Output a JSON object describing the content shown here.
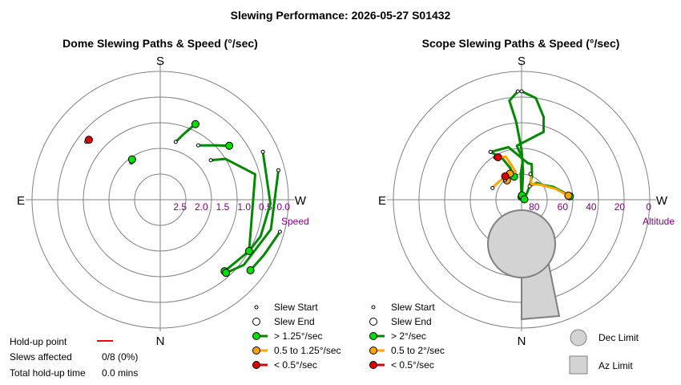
{
  "title": "Slewing Performance: 2026-05-27 S01432",
  "colors": {
    "fast": "#00dd00",
    "medium": "#ffa500",
    "slow": "#dd0000",
    "path_fast": "#008800",
    "path_medium": "#ffa500",
    "grid": "#808080",
    "tick": "#800080",
    "limit_fill": "#d3d3d3",
    "limit_stroke": "#808080",
    "holdup_line": "#ff0000"
  },
  "chart_data": [
    {
      "type": "polar-path",
      "title": "Dome Slewing Paths & Speed (°/sec)",
      "compass": {
        "top": "S",
        "bottom": "N",
        "left": "E",
        "right": "W"
      },
      "radial_axis": {
        "name": "Speed",
        "ticks": [
          "2.5",
          "2.0",
          "1.5",
          "1.0",
          "0.5",
          "0.0"
        ],
        "range": [
          3.0,
          0.0
        ]
      },
      "paths": [
        {
          "speed_class": "fast",
          "points": [
            [
              142,
              1.9
            ],
            [
              145,
              1.85
            ]
          ]
        },
        {
          "speed_class": "fast",
          "points": [
            [
              195,
              1.6
            ],
            [
              200,
              1.35
            ],
            [
              205,
              1.05
            ]
          ]
        },
        {
          "speed_class": "fast",
          "points": [
            [
              215,
              1.45
            ],
            [
              225,
              1.2
            ],
            [
              232,
              0.95
            ]
          ]
        },
        {
          "speed_class": "fast",
          "points": [
            [
              232,
              1.5
            ],
            [
              238,
              1.2
            ],
            [
              255,
              0.7
            ],
            [
              300,
              0.6
            ],
            [
              318,
              0.75
            ]
          ]
        },
        {
          "speed_class": "fast",
          "points": [
            [
              256,
              0.15
            ],
            [
              285,
              0.32
            ],
            [
              308,
              0.52
            ],
            [
              318,
              0.7
            ]
          ]
        },
        {
          "speed_class": "fast",
          "points": [
            [
              245,
              0.35
            ],
            [
              272,
              0.42
            ],
            [
              290,
              0.5
            ],
            [
              300,
              0.6
            ]
          ]
        },
        {
          "speed_class": "fast",
          "points": [
            [
              285,
              0.1
            ],
            [
              298,
              0.25
            ],
            [
              308,
              0.32
            ]
          ]
        },
        {
          "speed_class": "slow",
          "points": [
            [
              128,
              0.8
            ],
            [
              130,
              0.82
            ]
          ]
        }
      ]
    },
    {
      "type": "polar-path",
      "title": "Scope Slewing Paths & Speed (°/sec)",
      "compass": {
        "top": "S",
        "bottom": "N",
        "left": "E",
        "right": "W"
      },
      "radial_axis": {
        "name": "Altitude",
        "ticks": [
          "80",
          "60",
          "40",
          "20",
          "0"
        ],
        "range": [
          90,
          0
        ]
      },
      "paths": [
        {
          "speed_class": "fast",
          "points": [
            [
              180,
              14
            ],
            [
              188,
              18
            ],
            [
              195,
              30
            ],
            [
              198,
              40
            ],
            [
              175,
              52
            ],
            [
              182,
              62
            ],
            [
              178,
              72
            ],
            [
              180,
              88
            ]
          ]
        },
        {
          "speed_class": "fast",
          "points": [
            [
              178,
              14
            ],
            [
              173,
              20
            ],
            [
              176,
              35
            ],
            [
              180,
              55
            ],
            [
              183,
              70
            ],
            [
              185,
              87
            ]
          ]
        },
        {
          "speed_class": "fast",
          "points": [
            [
              147,
              50
            ],
            [
              166,
              52
            ],
            [
              190,
              64
            ],
            [
              196,
              64
            ],
            [
              204,
              72
            ],
            [
              212,
              80
            ],
            [
              262,
              88
            ]
          ]
        },
        {
          "speed_class": "fast",
          "points": [
            [
              211,
              79
            ],
            [
              222,
              74
            ],
            [
              235,
              72
            ],
            [
              248,
              66
            ],
            [
              260,
              60
            ],
            [
              266,
              56
            ]
          ]
        },
        {
          "speed_class": "fast",
          "points": [
            [
              147,
              50
            ],
            [
              155,
              58
            ],
            [
              160,
              66
            ],
            [
              162,
              73
            ]
          ]
        },
        {
          "speed_class": "medium",
          "points": [
            [
              199,
              71
            ],
            [
              212,
              77
            ],
            [
              232,
              73
            ],
            [
              252,
              65
            ],
            [
              265,
              57
            ]
          ]
        },
        {
          "speed_class": "medium",
          "points": [
            [
              148,
              55
            ],
            [
              160,
              58
            ],
            [
              168,
              70
            ],
            [
              156,
              70
            ]
          ]
        },
        {
          "speed_class": "medium",
          "points": [
            [
              112,
              68
            ],
            [
              120,
              69
            ],
            [
              135,
              70
            ],
            [
              143,
              73
            ]
          ]
        },
        {
          "speed_class": "slow",
          "points": [
            [
              150,
              55
            ],
            [
              151,
              56
            ]
          ]
        },
        {
          "speed_class": "slow",
          "points": [
            [
              140,
              72
            ],
            [
              145,
              70
            ]
          ]
        }
      ],
      "limits": [
        "Dec Limit",
        "Az Limit"
      ]
    }
  ],
  "legends": [
    {
      "items": [
        {
          "kind": "start",
          "label": "Slew Start"
        },
        {
          "kind": "end",
          "label": "Slew End"
        },
        {
          "kind": "fast",
          "label": "> 1.25°/sec"
        },
        {
          "kind": "medium",
          "label": "0.5 to 1.25°/sec"
        },
        {
          "kind": "slow",
          "label": "< 0.5°/sec"
        }
      ]
    },
    {
      "items": [
        {
          "kind": "start",
          "label": "Slew Start"
        },
        {
          "kind": "end",
          "label": "Slew End"
        },
        {
          "kind": "fast",
          "label": "> 2°/sec"
        },
        {
          "kind": "medium",
          "label": "0.5 to 2°/sec"
        },
        {
          "kind": "slow",
          "label": "< 0.5°/sec"
        }
      ]
    }
  ],
  "limits_legend": [
    {
      "shape": "circle",
      "label": "Dec Limit"
    },
    {
      "shape": "square",
      "label": "Az Limit"
    }
  ],
  "holdup": {
    "point_label": "Hold-up point",
    "slews_label": "Slews affected",
    "slews_value": "0/8 (0%)",
    "total_label": "Total hold-up time",
    "total_value": "0.0 mins"
  }
}
